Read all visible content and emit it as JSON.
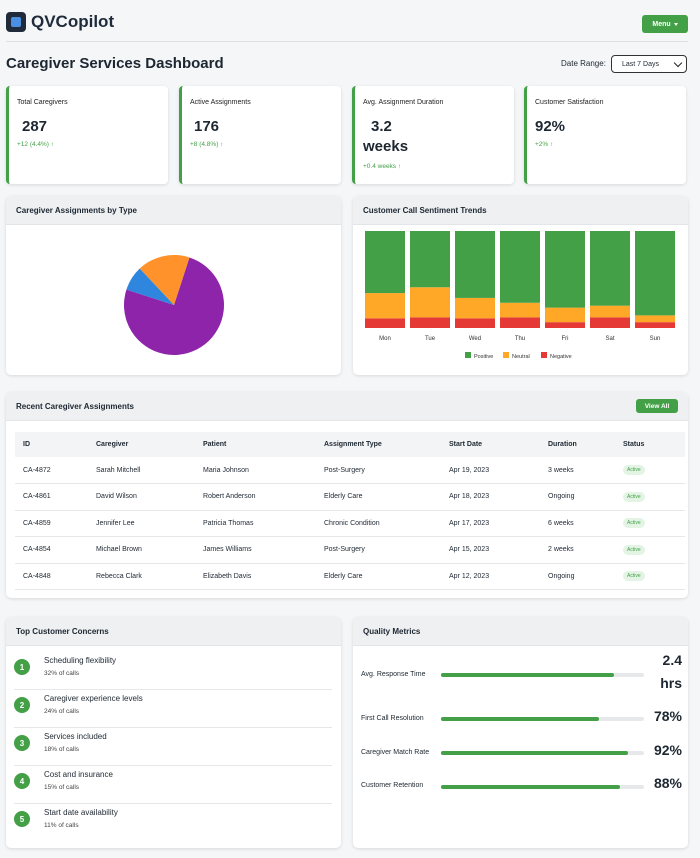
{
  "app": {
    "name": "QVCopilot",
    "menu_label": "Menu"
  },
  "page": {
    "title": "Caregiver Services Dashboard",
    "date_range_label": "Date Range:",
    "date_range_value": "Last 7 Days"
  },
  "kpis": [
    {
      "label": "Total Caregivers",
      "value": "287",
      "change": "+12 (4.4%) ↑"
    },
    {
      "label": "Active Assignments",
      "value": "176",
      "change": "+8 (4.8%) ↑"
    },
    {
      "label": "Avg. Assignment Duration",
      "value_line1": "3.2",
      "value_line2": "weeks",
      "change": "+0.4 weeks ↑"
    },
    {
      "label": "Customer Satisfaction",
      "value": "92%",
      "change": "+2% ↑"
    }
  ],
  "assignments_chart": {
    "title": "Caregiver Assignments by Type"
  },
  "sentiment_chart": {
    "title": "Customer Call Sentiment Trends"
  },
  "chart_data": [
    {
      "type": "pie",
      "title": "Caregiver Assignments by Type",
      "slices": [
        {
          "value": 75,
          "color": "#8e24aa"
        },
        {
          "value": 8,
          "color": "#2e86de"
        },
        {
          "value": 17,
          "color": "#ff922b"
        }
      ]
    },
    {
      "type": "bar",
      "stacked": true,
      "title": "Customer Call Sentiment Trends",
      "categories": [
        "Mon",
        "Tue",
        "Wed",
        "Thu",
        "Fri",
        "Sat",
        "Sun"
      ],
      "series": [
        {
          "name": "Positive",
          "color": "#43a047",
          "values": [
            64,
            58,
            69,
            74,
            79,
            77,
            87
          ]
        },
        {
          "name": "Neutral",
          "color": "#ffa726",
          "values": [
            26,
            31,
            21,
            15,
            15,
            12,
            7
          ]
        },
        {
          "name": "Negative",
          "color": "#e53935",
          "values": [
            10,
            11,
            10,
            11,
            6,
            11,
            6
          ]
        }
      ],
      "ylim": [
        0,
        100
      ]
    }
  ],
  "recent": {
    "title": "Recent Caregiver Assignments",
    "view_all": "View All",
    "columns": [
      "ID",
      "Caregiver",
      "Patient",
      "Assignment Type",
      "Start Date",
      "Duration",
      "Status"
    ],
    "rows": [
      [
        "CA-4872",
        "Sarah Mitchell",
        "Maria Johnson",
        "Post-Surgery",
        "Apr 19, 2023",
        "3 weeks",
        "Active"
      ],
      [
        "CA-4861",
        "David Wilson",
        "Robert Anderson",
        "Elderly Care",
        "Apr 18, 2023",
        "Ongoing",
        "Active"
      ],
      [
        "CA-4859",
        "Jennifer Lee",
        "Patricia Thomas",
        "Chronic Condition",
        "Apr 17, 2023",
        "6 weeks",
        "Active"
      ],
      [
        "CA-4854",
        "Michael Brown",
        "James Williams",
        "Post-Surgery",
        "Apr 15, 2023",
        "2 weeks",
        "Active"
      ],
      [
        "CA-4848",
        "Rebecca Clark",
        "Elizabeth Davis",
        "Elderly Care",
        "Apr 12, 2023",
        "Ongoing",
        "Active"
      ]
    ]
  },
  "concerns": {
    "title": "Top Customer Concerns",
    "items": [
      {
        "num": "1",
        "title": "Scheduling flexibility",
        "sub": "32% of calls"
      },
      {
        "num": "2",
        "title": "Caregiver experience levels",
        "sub": "24% of calls"
      },
      {
        "num": "3",
        "title": "Services included",
        "sub": "18% of calls"
      },
      {
        "num": "4",
        "title": "Cost and insurance",
        "sub": "15% of calls"
      },
      {
        "num": "5",
        "title": "Start date availability",
        "sub": "11% of calls"
      }
    ]
  },
  "quality": {
    "title": "Quality Metrics",
    "items": [
      {
        "label": "Avg. Response Time",
        "value_line1": "2.4",
        "value_line2": "hrs",
        "progress": 0.85
      },
      {
        "label": "First Call Resolution",
        "value": "78%",
        "progress": 0.78
      },
      {
        "label": "Caregiver Match Rate",
        "value": "92%",
        "progress": 0.92
      },
      {
        "label": "Customer Retention",
        "value": "88%",
        "progress": 0.88
      }
    ]
  },
  "colors": {
    "accent": "#43a047"
  }
}
